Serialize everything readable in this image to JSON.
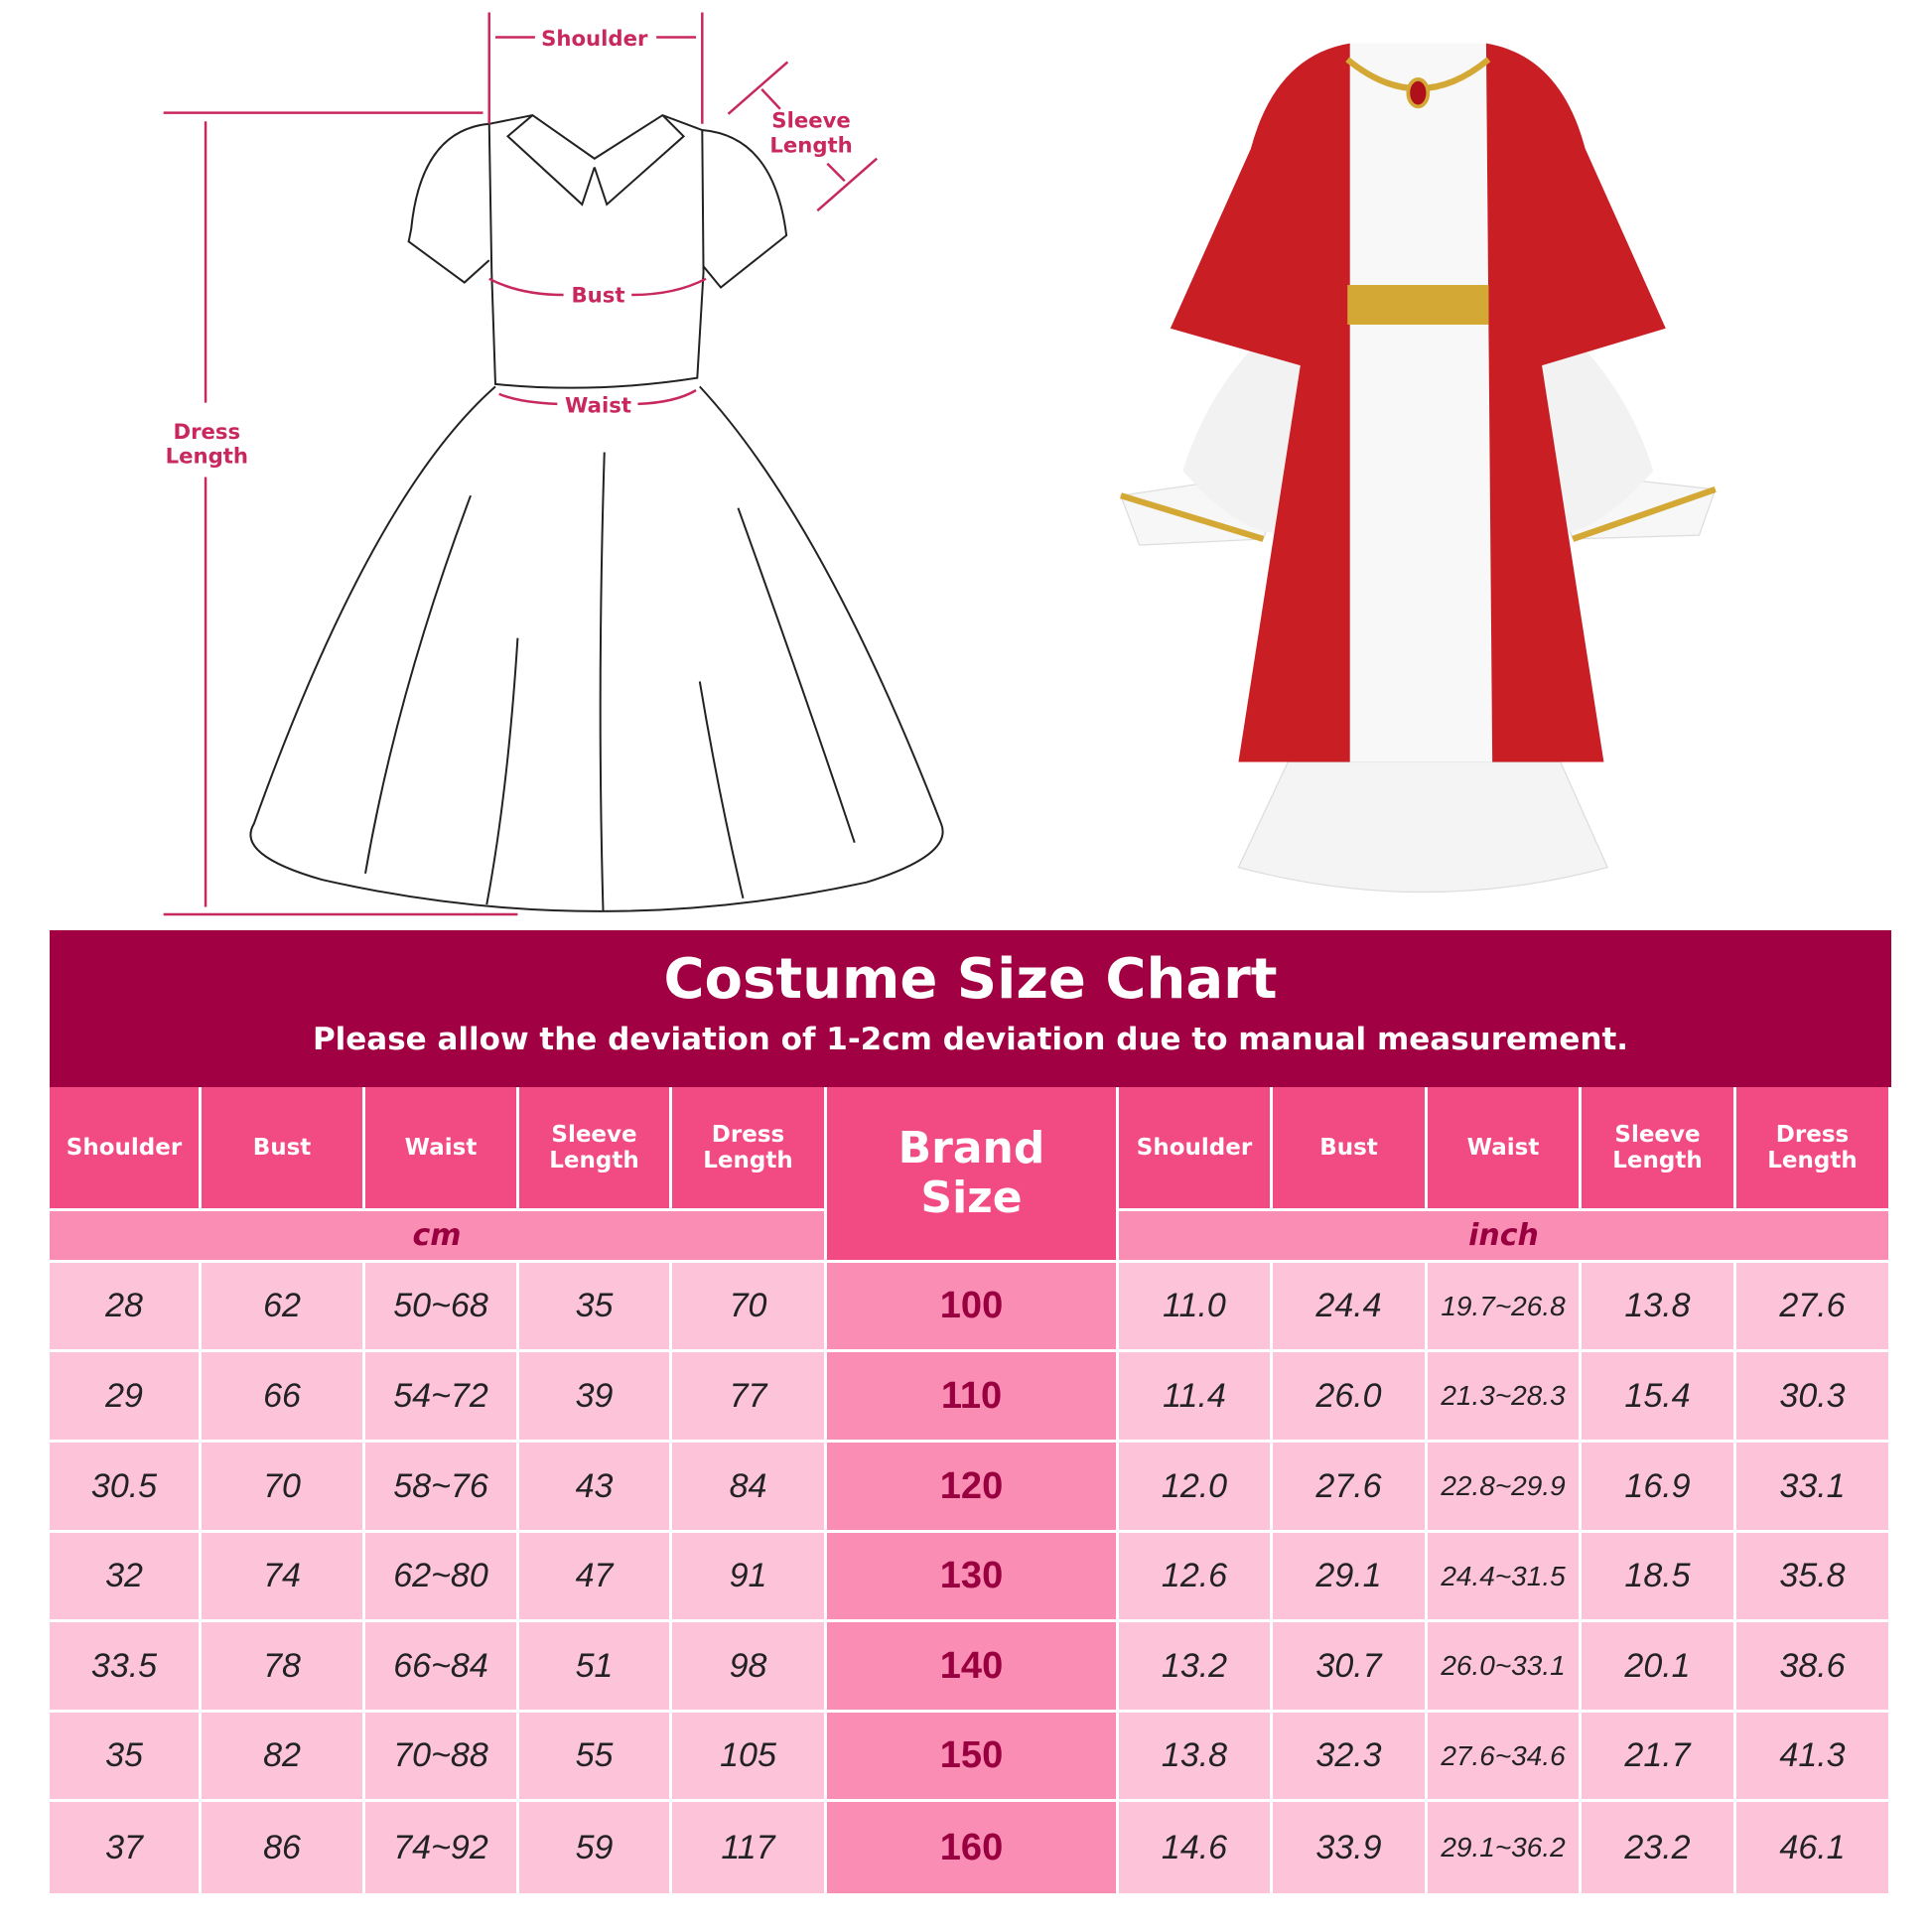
{
  "diagram": {
    "labels": {
      "shoulder": "Shoulder",
      "sleeve_1": "Sleeve",
      "sleeve_2": "Length",
      "bust": "Bust",
      "waist": "Waist",
      "dress_1": "Dress",
      "dress_2": "Length"
    },
    "colors": {
      "measure": "#c8285e",
      "robe": "#c81e24",
      "gold": "#d4a834"
    }
  },
  "banner": {
    "title": "Costume Size Chart",
    "subtitle": "Please allow the deviation of 1-2cm deviation due to manual measurement."
  },
  "table": {
    "headers": [
      "Shoulder",
      "Bust",
      "Waist",
      "Sleeve Length",
      "Dress Length"
    ],
    "brand_header": "Brand Size",
    "unit_cm": "cm",
    "unit_inch": "inch",
    "rows": [
      {
        "size": "100",
        "cm": [
          "28",
          "62",
          "50~68",
          "35",
          "70"
        ],
        "inch": [
          "11.0",
          "24.4",
          "19.7~26.8",
          "13.8",
          "27.6"
        ]
      },
      {
        "size": "110",
        "cm": [
          "29",
          "66",
          "54~72",
          "39",
          "77"
        ],
        "inch": [
          "11.4",
          "26.0",
          "21.3~28.3",
          "15.4",
          "30.3"
        ]
      },
      {
        "size": "120",
        "cm": [
          "30.5",
          "70",
          "58~76",
          "43",
          "84"
        ],
        "inch": [
          "12.0",
          "27.6",
          "22.8~29.9",
          "16.9",
          "33.1"
        ]
      },
      {
        "size": "130",
        "cm": [
          "32",
          "74",
          "62~80",
          "47",
          "91"
        ],
        "inch": [
          "12.6",
          "29.1",
          "24.4~31.5",
          "18.5",
          "35.8"
        ]
      },
      {
        "size": "140",
        "cm": [
          "33.5",
          "78",
          "66~84",
          "51",
          "98"
        ],
        "inch": [
          "13.2",
          "30.7",
          "26.0~33.1",
          "20.1",
          "38.6"
        ]
      },
      {
        "size": "150",
        "cm": [
          "35",
          "82",
          "70~88",
          "55",
          "105"
        ],
        "inch": [
          "13.8",
          "32.3",
          "27.6~34.6",
          "21.7",
          "41.3"
        ]
      },
      {
        "size": "160",
        "cm": [
          "37",
          "86",
          "74~92",
          "59",
          "117"
        ],
        "inch": [
          "14.6",
          "33.9",
          "29.1~36.2",
          "23.2",
          "46.1"
        ]
      }
    ],
    "colors": {
      "banner": "#a10042",
      "header": "#f24a82",
      "unit_row": "#fa8db3",
      "cell": "#fdc4d9"
    }
  }
}
